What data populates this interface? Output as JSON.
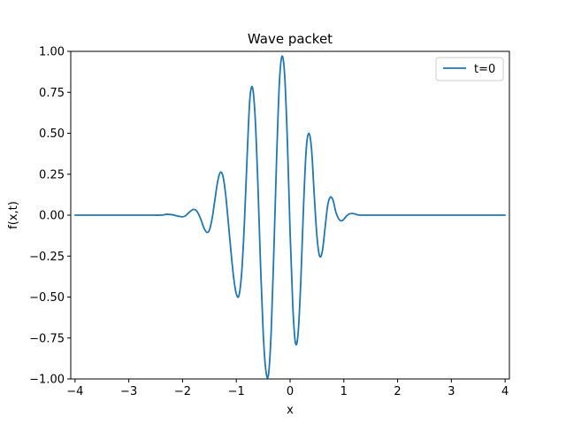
{
  "chart_data": {
    "type": "line",
    "title": "Wave packet",
    "xlabel": "x",
    "ylabel": "f(x,t)",
    "xlim": [
      -4.08,
      4.08
    ],
    "ylim": [
      -1.0,
      1.0
    ],
    "grid": false,
    "legend_position": "top-right",
    "xticks": [
      -4,
      -3,
      -2,
      -1,
      0,
      1,
      2,
      3,
      4
    ],
    "xtick_labels": [
      "−4",
      "−3",
      "−2",
      "−1",
      "0",
      "1",
      "2",
      "3",
      "4"
    ],
    "yticks": [
      -1.0,
      -0.75,
      -0.5,
      -0.25,
      0.0,
      0.25,
      0.5,
      0.75,
      1.0
    ],
    "ytick_labels": [
      "−1.00",
      "−0.75",
      "−0.50",
      "−0.25",
      "0.00",
      "0.25",
      "0.50",
      "0.75",
      "1.00"
    ],
    "series": [
      {
        "name": "t=0",
        "color": "#1f77b4",
        "x": [
          -4.0,
          -3.5,
          -3.0,
          -2.8,
          -2.6,
          -2.4,
          -2.3,
          -2.2,
          -2.1,
          -2.0,
          -1.95,
          -1.9,
          -1.85,
          -1.8,
          -1.75,
          -1.7,
          -1.65,
          -1.6,
          -1.55,
          -1.5,
          -1.45,
          -1.4,
          -1.35,
          -1.3,
          -1.25,
          -1.2,
          -1.15,
          -1.1,
          -1.05,
          -1.0,
          -0.95,
          -0.9,
          -0.85,
          -0.8,
          -0.75,
          -0.7,
          -0.65,
          -0.6,
          -0.55,
          -0.5,
          -0.45,
          -0.4,
          -0.35,
          -0.3,
          -0.25,
          -0.2,
          -0.15,
          -0.1,
          -0.05,
          0.0,
          0.05,
          0.1,
          0.15,
          0.2,
          0.25,
          0.3,
          0.35,
          0.4,
          0.45,
          0.5,
          0.55,
          0.6,
          0.65,
          0.7,
          0.75,
          0.8,
          0.85,
          0.9,
          0.95,
          1.0,
          1.05,
          1.1,
          1.15,
          1.2,
          1.25,
          1.3,
          1.35,
          1.4,
          1.45,
          1.5,
          1.55,
          1.6,
          1.65,
          1.7,
          1.75,
          1.8,
          1.85,
          1.9,
          1.95,
          2.0,
          2.1,
          2.2,
          2.3,
          2.4,
          2.6,
          2.8,
          3.0,
          3.5,
          4.0
        ],
        "y": [
          0.0,
          0.0,
          0.0,
          0.0,
          0.0,
          0.0,
          0.005,
          0.003,
          -0.005,
          -0.01,
          -0.005,
          0.01,
          0.025,
          0.035,
          0.03,
          0.005,
          -0.035,
          -0.08,
          -0.105,
          -0.09,
          -0.02,
          0.09,
          0.2,
          0.26,
          0.24,
          0.13,
          -0.04,
          -0.22,
          -0.38,
          -0.48,
          -0.49,
          -0.35,
          -0.05,
          0.35,
          0.7,
          0.78,
          0.6,
          0.2,
          -0.3,
          -0.72,
          -0.95,
          -0.97,
          -0.7,
          -0.2,
          0.35,
          0.8,
          0.97,
          0.85,
          0.45,
          -0.1,
          -0.55,
          -0.78,
          -0.72,
          -0.4,
          0.05,
          0.4,
          0.5,
          0.4,
          0.12,
          -0.13,
          -0.25,
          -0.22,
          -0.08,
          0.06,
          0.11,
          0.09,
          0.02,
          -0.02,
          -0.035,
          -0.025,
          -0.005,
          0.007,
          0.01,
          0.008,
          0.003,
          0.0,
          0.0,
          0.0,
          0.0,
          0.0,
          0.0,
          0.0,
          0.0,
          0.0,
          0.0,
          0.0,
          0.0,
          0.0,
          0.0,
          0.0,
          0.0,
          0.0,
          0.0,
          0.0,
          0.0,
          0.0,
          0.0,
          0.0,
          0.0
        ]
      }
    ]
  }
}
